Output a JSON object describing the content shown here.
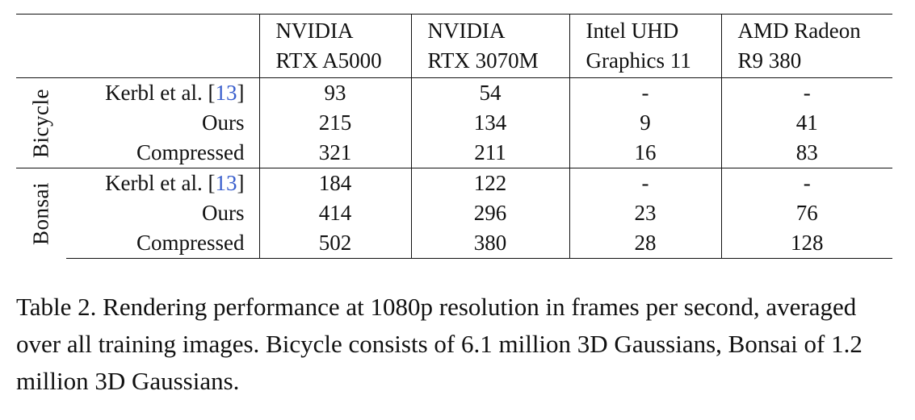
{
  "table": {
    "header": {
      "gpus": [
        {
          "line1": "NVIDIA",
          "line2": "RTX A5000"
        },
        {
          "line1": "NVIDIA",
          "line2": "RTX 3070M"
        },
        {
          "line1": "Intel UHD",
          "line2": "Graphics 11"
        },
        {
          "line1": "AMD Radeon",
          "line2": "R9 380"
        }
      ]
    },
    "groups": [
      {
        "name": "Bicycle",
        "rows": [
          {
            "method": "Kerbl et al. [",
            "cite": "13",
            "method_end": "]",
            "values": [
              "93",
              "54",
              "-",
              "-"
            ]
          },
          {
            "method": "Ours",
            "cite": "",
            "method_end": "",
            "values": [
              "215",
              "134",
              "9",
              "41"
            ]
          },
          {
            "method": "Compressed",
            "cite": "",
            "method_end": "",
            "values": [
              "321",
              "211",
              "16",
              "83"
            ]
          }
        ]
      },
      {
        "name": "Bonsai",
        "rows": [
          {
            "method": "Kerbl et al. [",
            "cite": "13",
            "method_end": "]",
            "values": [
              "184",
              "122",
              "-",
              "-"
            ]
          },
          {
            "method": "Ours",
            "cite": "",
            "method_end": "",
            "values": [
              "414",
              "296",
              "23",
              "76"
            ]
          },
          {
            "method": "Compressed",
            "cite": "",
            "method_end": "",
            "values": [
              "502",
              "380",
              "28",
              "128"
            ]
          }
        ]
      }
    ]
  },
  "caption": "Table 2. Rendering performance at 1080p resolution in frames per second, averaged over all training images. Bicycle consists of 6.1 million 3D Gaussians, Bonsai of 1.2 million 3D Gaussians.",
  "colors": {
    "text": "#111111",
    "citation": "#3a5fcd",
    "rule": "#111111"
  }
}
